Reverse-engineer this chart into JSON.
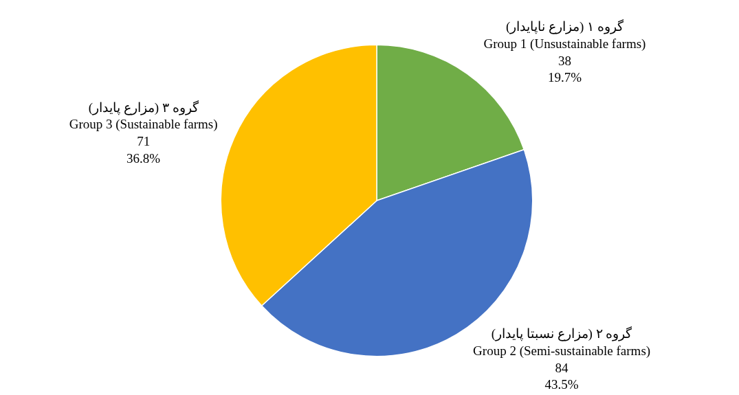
{
  "chart_data": {
    "type": "pie",
    "categories": [
      "گروه ۱ (مزارع ناپایدار)\nGroup 1 (Unsustainable farms)",
      "گروه ۲ (مزارع نسبتا پایدار)\nGroup 2 (Semi-sustainable farms)",
      "گروه ۳ (مزارع پایدار)\nGroup 3 (Sustainable farms)"
    ],
    "values": [
      38,
      84,
      71
    ],
    "value_labels": [
      "38\n19.7%",
      "84\n43.5%",
      "71\n36.8%"
    ],
    "colors": [
      "#70ad47",
      "#4472c4",
      "#ffc000"
    ],
    "legend": false
  }
}
